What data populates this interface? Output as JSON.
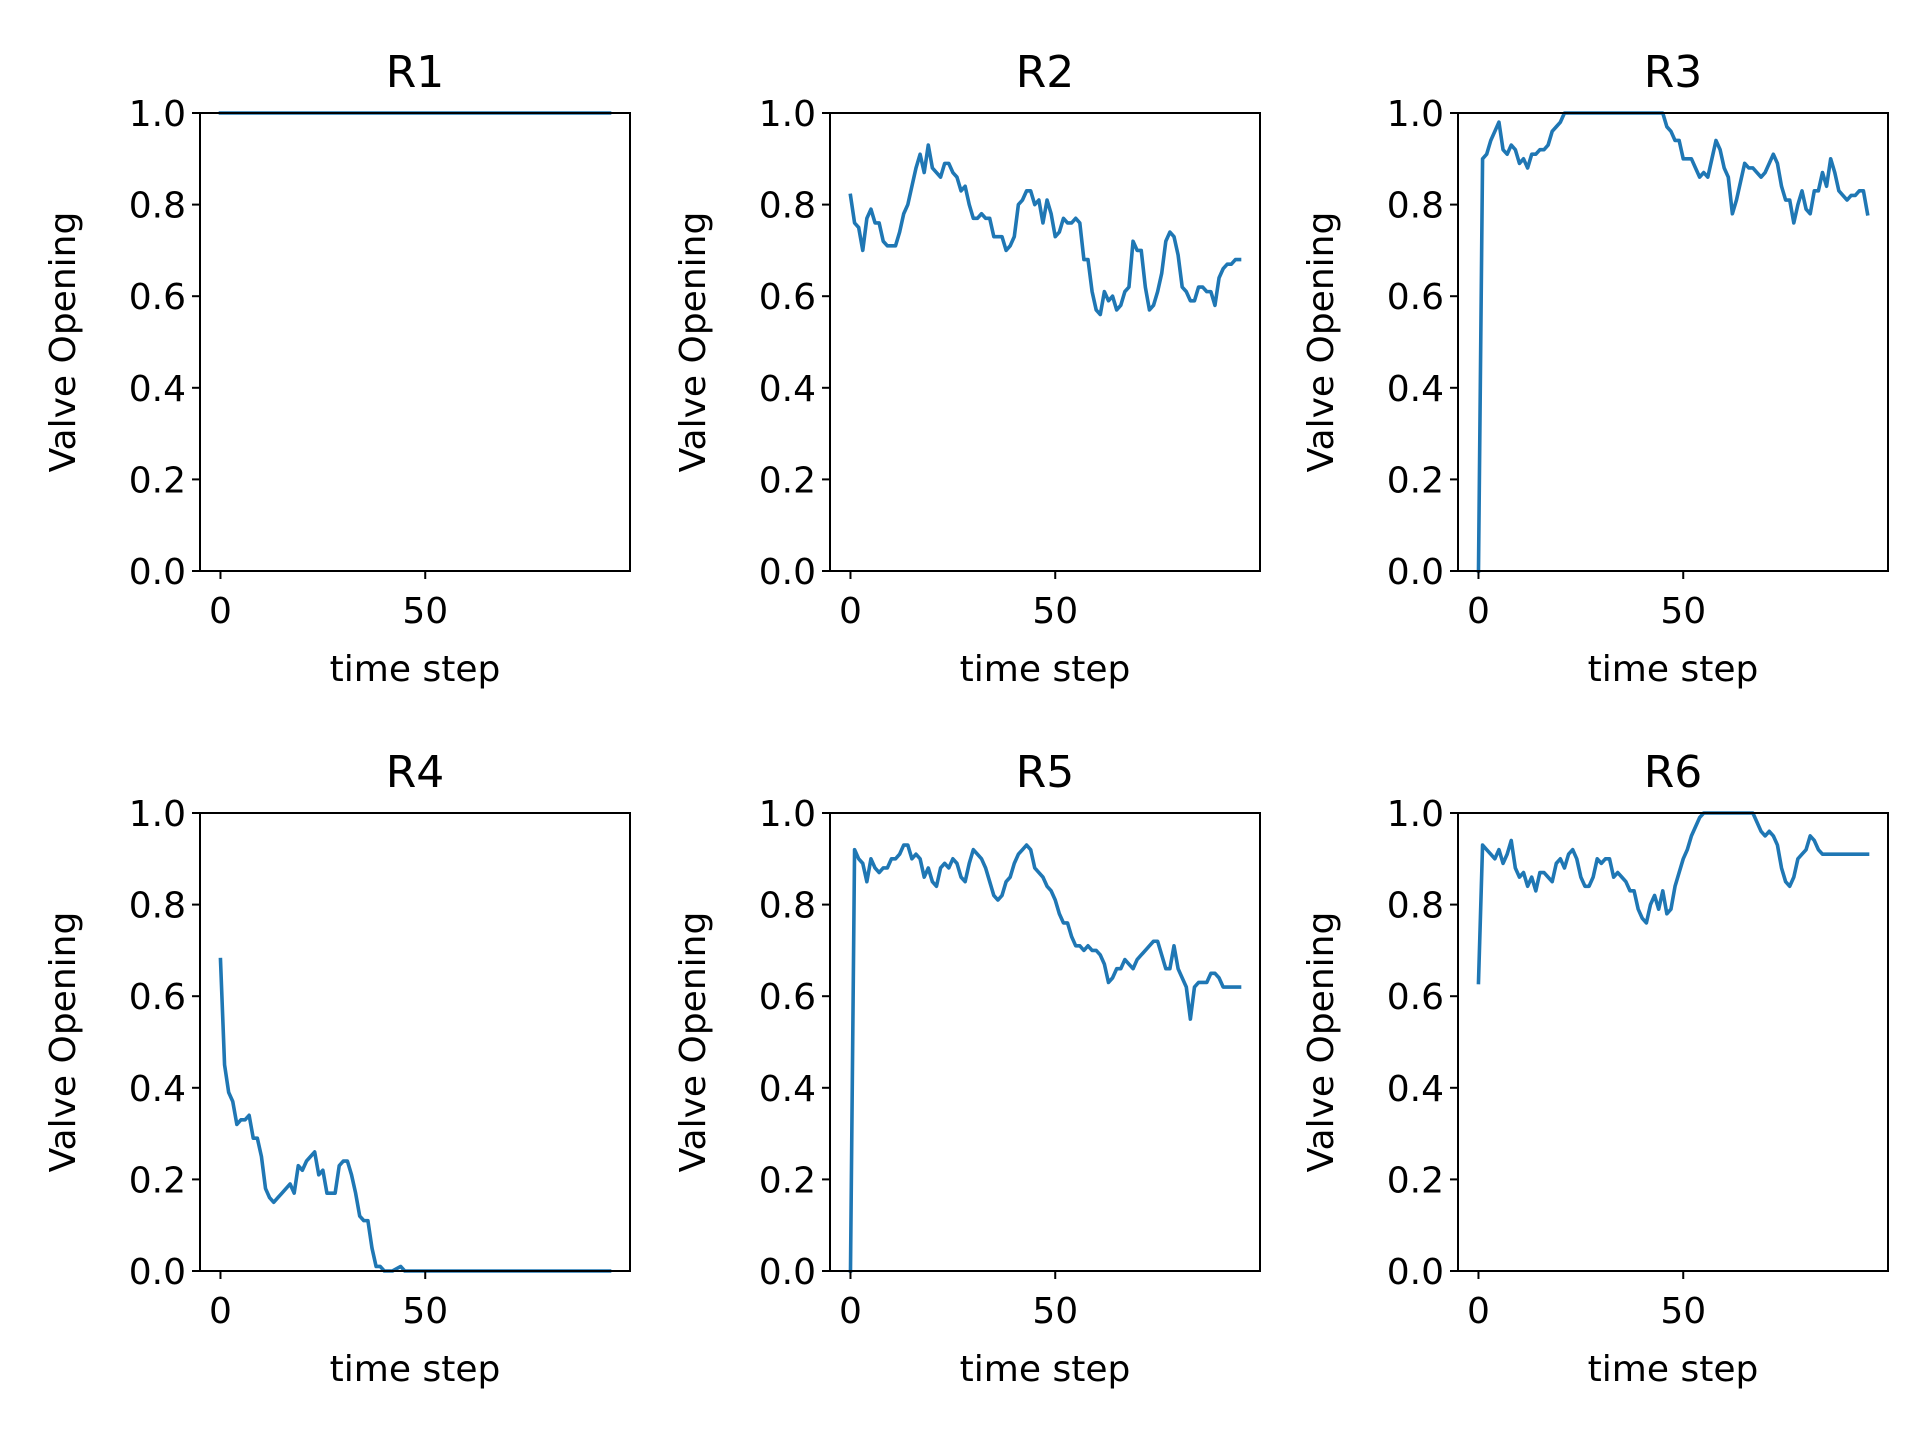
{
  "figure": {
    "line_color": "#1f77b4",
    "background": "#ffffff"
  },
  "chart_data": [
    {
      "type": "line",
      "title": "R1",
      "xlabel": "time step",
      "ylabel": "Valve Opening",
      "xlim": [
        -5,
        100
      ],
      "ylim": [
        0,
        1
      ],
      "xticks": [
        0,
        50
      ],
      "yticks": [
        "0.0",
        "0.2",
        "0.4",
        "0.6",
        "0.8",
        "1.0"
      ],
      "grid": false,
      "series": [
        {
          "x": [
            0,
            95
          ],
          "values": [
            1.0,
            1.0
          ]
        }
      ]
    },
    {
      "type": "line",
      "title": "R2",
      "xlabel": "time step",
      "ylabel": "Valve Opening",
      "xlim": [
        -5,
        100
      ],
      "ylim": [
        0,
        1
      ],
      "xticks": [
        0,
        50
      ],
      "yticks": [
        "0.0",
        "0.2",
        "0.4",
        "0.6",
        "0.8",
        "1.0"
      ],
      "grid": false,
      "series": [
        {
          "x": [
            0,
            1,
            2,
            3,
            4,
            5,
            6,
            7,
            8,
            9,
            10,
            11,
            12,
            13,
            14,
            15,
            16,
            17,
            18,
            19,
            20,
            21,
            22,
            23,
            24,
            25,
            26,
            27,
            28,
            29,
            30,
            31,
            32,
            33,
            34,
            35,
            36,
            37,
            38,
            39,
            40,
            41,
            42,
            43,
            44,
            45,
            46,
            47,
            48,
            49,
            50,
            51,
            52,
            53,
            54,
            55,
            56,
            57,
            58,
            59,
            60,
            61,
            62,
            63,
            64,
            65,
            66,
            67,
            68,
            69,
            70,
            71,
            72,
            73,
            74,
            75,
            76,
            77,
            78,
            79,
            80,
            81,
            82,
            83,
            84,
            85,
            86,
            87,
            88,
            89,
            90,
            91,
            92,
            93,
            94,
            95
          ],
          "values": [
            0.82,
            0.76,
            0.75,
            0.7,
            0.77,
            0.79,
            0.76,
            0.76,
            0.72,
            0.71,
            0.71,
            0.71,
            0.74,
            0.78,
            0.8,
            0.84,
            0.88,
            0.91,
            0.87,
            0.93,
            0.88,
            0.87,
            0.86,
            0.89,
            0.89,
            0.87,
            0.86,
            0.83,
            0.84,
            0.8,
            0.77,
            0.77,
            0.78,
            0.77,
            0.77,
            0.73,
            0.73,
            0.73,
            0.7,
            0.71,
            0.73,
            0.8,
            0.81,
            0.83,
            0.83,
            0.8,
            0.81,
            0.76,
            0.81,
            0.78,
            0.73,
            0.74,
            0.77,
            0.76,
            0.76,
            0.77,
            0.76,
            0.68,
            0.68,
            0.61,
            0.57,
            0.56,
            0.61,
            0.59,
            0.6,
            0.57,
            0.58,
            0.61,
            0.62,
            0.72,
            0.7,
            0.7,
            0.62,
            0.57,
            0.58,
            0.61,
            0.65,
            0.72,
            0.74,
            0.73,
            0.69,
            0.62,
            0.61,
            0.59,
            0.59,
            0.62,
            0.62,
            0.61,
            0.61,
            0.58,
            0.64,
            0.66,
            0.67,
            0.67,
            0.68,
            0.68
          ]
        }
      ]
    },
    {
      "type": "line",
      "title": "R3",
      "xlabel": "time step",
      "ylabel": "Valve Opening",
      "xlim": [
        -5,
        100
      ],
      "ylim": [
        0,
        1
      ],
      "xticks": [
        0,
        50
      ],
      "yticks": [
        "0.0",
        "0.2",
        "0.4",
        "0.6",
        "0.8",
        "1.0"
      ],
      "grid": false,
      "series": [
        {
          "x": [
            0,
            1,
            2,
            3,
            4,
            5,
            6,
            7,
            8,
            9,
            10,
            11,
            12,
            13,
            14,
            15,
            16,
            17,
            18,
            19,
            20,
            21,
            22,
            23,
            24,
            25,
            26,
            27,
            28,
            29,
            30,
            31,
            32,
            33,
            34,
            35,
            36,
            37,
            38,
            39,
            40,
            41,
            42,
            43,
            44,
            45,
            46,
            47,
            48,
            49,
            50,
            51,
            52,
            53,
            54,
            55,
            56,
            57,
            58,
            59,
            60,
            61,
            62,
            63,
            64,
            65,
            66,
            67,
            68,
            69,
            70,
            71,
            72,
            73,
            74,
            75,
            76,
            77,
            78,
            79,
            80,
            81,
            82,
            83,
            84,
            85,
            86,
            87,
            88,
            89,
            90,
            91,
            92,
            93,
            94,
            95
          ],
          "values": [
            0.0,
            0.9,
            0.91,
            0.94,
            0.96,
            0.98,
            0.92,
            0.91,
            0.93,
            0.92,
            0.89,
            0.9,
            0.88,
            0.91,
            0.91,
            0.92,
            0.92,
            0.93,
            0.96,
            0.97,
            0.98,
            1.0,
            1.0,
            1.0,
            1.0,
            1.0,
            1.0,
            1.0,
            1.0,
            1.0,
            1.0,
            1.0,
            1.0,
            1.0,
            1.0,
            1.0,
            1.0,
            1.0,
            1.0,
            1.0,
            1.0,
            1.0,
            1.0,
            1.0,
            1.0,
            1.0,
            0.97,
            0.96,
            0.94,
            0.94,
            0.9,
            0.9,
            0.9,
            0.88,
            0.86,
            0.87,
            0.86,
            0.9,
            0.94,
            0.92,
            0.88,
            0.86,
            0.78,
            0.81,
            0.85,
            0.89,
            0.88,
            0.88,
            0.87,
            0.86,
            0.87,
            0.89,
            0.91,
            0.89,
            0.84,
            0.81,
            0.81,
            0.76,
            0.8,
            0.83,
            0.79,
            0.78,
            0.83,
            0.83,
            0.87,
            0.84,
            0.9,
            0.87,
            0.83,
            0.82,
            0.81,
            0.82,
            0.82,
            0.83,
            0.83,
            0.78
          ]
        }
      ]
    },
    {
      "type": "line",
      "title": "R4",
      "xlabel": "time step",
      "ylabel": "Valve Opening",
      "xlim": [
        -5,
        100
      ],
      "ylim": [
        0,
        1
      ],
      "xticks": [
        0,
        50
      ],
      "yticks": [
        "0.0",
        "0.2",
        "0.4",
        "0.6",
        "0.8",
        "1.0"
      ],
      "grid": false,
      "series": [
        {
          "x": [
            0,
            1,
            2,
            3,
            4,
            5,
            6,
            7,
            8,
            9,
            10,
            11,
            12,
            13,
            14,
            15,
            16,
            17,
            18,
            19,
            20,
            21,
            22,
            23,
            24,
            25,
            26,
            27,
            28,
            29,
            30,
            31,
            32,
            33,
            34,
            35,
            36,
            37,
            38,
            39,
            40,
            41,
            42,
            43,
            44,
            45,
            46,
            47,
            48,
            49,
            50,
            95
          ],
          "values": [
            0.68,
            0.45,
            0.39,
            0.37,
            0.32,
            0.33,
            0.33,
            0.34,
            0.29,
            0.29,
            0.25,
            0.18,
            0.16,
            0.15,
            0.16,
            0.17,
            0.18,
            0.19,
            0.17,
            0.23,
            0.22,
            0.24,
            0.25,
            0.26,
            0.21,
            0.22,
            0.17,
            0.17,
            0.17,
            0.23,
            0.24,
            0.24,
            0.21,
            0.17,
            0.12,
            0.11,
            0.11,
            0.05,
            0.01,
            0.01,
            0.0,
            0.0,
            0.0,
            0.005,
            0.01,
            0.0,
            0.0,
            0.0,
            0.0,
            0.0,
            0.0,
            0.0
          ]
        }
      ]
    },
    {
      "type": "line",
      "title": "R5",
      "xlabel": "time step",
      "ylabel": "Valve Opening",
      "xlim": [
        -5,
        100
      ],
      "ylim": [
        0,
        1
      ],
      "xticks": [
        0,
        50
      ],
      "yticks": [
        "0.0",
        "0.2",
        "0.4",
        "0.6",
        "0.8",
        "1.0"
      ],
      "grid": false,
      "series": [
        {
          "x": [
            0,
            1,
            2,
            3,
            4,
            5,
            6,
            7,
            8,
            9,
            10,
            11,
            12,
            13,
            14,
            15,
            16,
            17,
            18,
            19,
            20,
            21,
            22,
            23,
            24,
            25,
            26,
            27,
            28,
            29,
            30,
            31,
            32,
            33,
            34,
            35,
            36,
            37,
            38,
            39,
            40,
            41,
            42,
            43,
            44,
            45,
            46,
            47,
            48,
            49,
            50,
            51,
            52,
            53,
            54,
            55,
            56,
            57,
            58,
            59,
            60,
            61,
            62,
            63,
            64,
            65,
            66,
            67,
            68,
            69,
            70,
            71,
            72,
            73,
            74,
            75,
            76,
            77,
            78,
            79,
            80,
            81,
            82,
            83,
            84,
            85,
            86,
            87,
            88,
            89,
            90,
            91,
            92,
            93,
            94,
            95
          ],
          "values": [
            0.0,
            0.92,
            0.9,
            0.89,
            0.85,
            0.9,
            0.88,
            0.87,
            0.88,
            0.88,
            0.9,
            0.9,
            0.91,
            0.93,
            0.93,
            0.9,
            0.91,
            0.9,
            0.86,
            0.88,
            0.85,
            0.84,
            0.88,
            0.89,
            0.88,
            0.9,
            0.89,
            0.86,
            0.85,
            0.89,
            0.92,
            0.91,
            0.9,
            0.88,
            0.85,
            0.82,
            0.81,
            0.82,
            0.85,
            0.86,
            0.89,
            0.91,
            0.92,
            0.93,
            0.92,
            0.88,
            0.87,
            0.86,
            0.84,
            0.83,
            0.81,
            0.78,
            0.76,
            0.76,
            0.73,
            0.71,
            0.71,
            0.7,
            0.71,
            0.7,
            0.7,
            0.69,
            0.67,
            0.63,
            0.64,
            0.66,
            0.66,
            0.68,
            0.67,
            0.66,
            0.68,
            0.69,
            0.7,
            0.71,
            0.72,
            0.72,
            0.69,
            0.66,
            0.66,
            0.71,
            0.66,
            0.64,
            0.62,
            0.55,
            0.62,
            0.63,
            0.63,
            0.63,
            0.65,
            0.65,
            0.64,
            0.62,
            0.62,
            0.62,
            0.62,
            0.62
          ]
        }
      ]
    },
    {
      "type": "line",
      "title": "R6",
      "xlabel": "time step",
      "ylabel": "Valve Opening",
      "xlim": [
        -5,
        100
      ],
      "ylim": [
        0,
        1
      ],
      "xticks": [
        0,
        50
      ],
      "yticks": [
        "0.0",
        "0.2",
        "0.4",
        "0.6",
        "0.8",
        "1.0"
      ],
      "grid": false,
      "series": [
        {
          "x": [
            0,
            1,
            2,
            3,
            4,
            5,
            6,
            7,
            8,
            9,
            10,
            11,
            12,
            13,
            14,
            15,
            16,
            17,
            18,
            19,
            20,
            21,
            22,
            23,
            24,
            25,
            26,
            27,
            28,
            29,
            30,
            31,
            32,
            33,
            34,
            35,
            36,
            37,
            38,
            39,
            40,
            41,
            42,
            43,
            44,
            45,
            46,
            47,
            48,
            49,
            50,
            51,
            52,
            53,
            54,
            55,
            56,
            57,
            58,
            59,
            60,
            61,
            62,
            63,
            64,
            65,
            66,
            67,
            68,
            69,
            70,
            71,
            72,
            73,
            74,
            75,
            76,
            77,
            78,
            79,
            80,
            81,
            82,
            83,
            84,
            85,
            86,
            87,
            88,
            89,
            90,
            91,
            92,
            93,
            94,
            95
          ],
          "values": [
            0.63,
            0.93,
            0.92,
            0.91,
            0.9,
            0.92,
            0.89,
            0.91,
            0.94,
            0.88,
            0.86,
            0.87,
            0.84,
            0.86,
            0.83,
            0.87,
            0.87,
            0.86,
            0.85,
            0.89,
            0.9,
            0.88,
            0.91,
            0.92,
            0.9,
            0.86,
            0.84,
            0.84,
            0.86,
            0.9,
            0.89,
            0.9,
            0.9,
            0.86,
            0.87,
            0.86,
            0.85,
            0.83,
            0.83,
            0.79,
            0.77,
            0.76,
            0.8,
            0.82,
            0.79,
            0.83,
            0.78,
            0.79,
            0.84,
            0.87,
            0.9,
            0.92,
            0.95,
            0.97,
            0.99,
            1.0,
            1.0,
            1.0,
            1.0,
            1.0,
            1.0,
            1.0,
            1.0,
            1.0,
            1.0,
            1.0,
            1.0,
            1.0,
            0.98,
            0.96,
            0.95,
            0.96,
            0.95,
            0.93,
            0.88,
            0.85,
            0.84,
            0.86,
            0.9,
            0.91,
            0.92,
            0.95,
            0.94,
            0.92,
            0.91,
            0.91,
            0.91,
            0.91,
            0.91,
            0.91,
            0.91,
            0.91,
            0.91,
            0.91,
            0.91,
            0.91
          ]
        }
      ]
    }
  ]
}
